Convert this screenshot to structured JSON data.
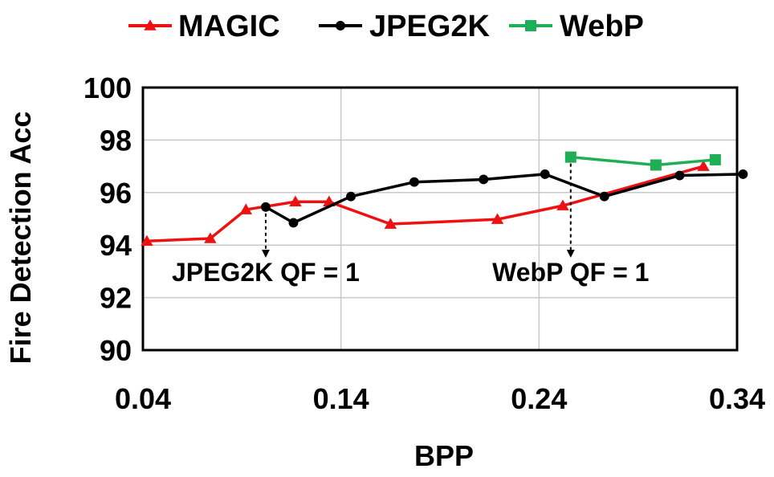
{
  "chart_data": {
    "type": "line",
    "title": "",
    "xlabel": "BPP",
    "ylabel": "Fire Detection Acc",
    "xlim": [
      0.04,
      0.34
    ],
    "ylim": [
      90,
      100
    ],
    "xticks": [
      0.04,
      0.14,
      0.24,
      0.34
    ],
    "xtick_labels": [
      "0.04",
      "0.14",
      "0.24",
      "0.34"
    ],
    "yticks": [
      90,
      92,
      94,
      96,
      98,
      100
    ],
    "ytick_labels": [
      "90",
      "92",
      "94",
      "96",
      "98",
      "100"
    ],
    "grid": true,
    "legend_position": "top",
    "series": [
      {
        "name": "MAGIC",
        "color": "#ee1111",
        "marker": "triangle",
        "x": [
          0.042,
          0.074,
          0.092,
          0.117,
          0.134,
          0.165,
          0.219,
          0.252,
          0.323
        ],
        "y": [
          94.15,
          94.25,
          95.35,
          95.65,
          95.65,
          94.8,
          94.98,
          95.5,
          97.0
        ]
      },
      {
        "name": "JPEG2K",
        "color": "#000000",
        "marker": "circle",
        "x": [
          0.102,
          0.116,
          0.145,
          0.177,
          0.212,
          0.243,
          0.273,
          0.311,
          0.343
        ],
        "y": [
          95.45,
          94.85,
          95.85,
          96.4,
          96.5,
          96.7,
          95.85,
          96.65,
          96.7
        ]
      },
      {
        "name": "WebP",
        "color": "#1fae55",
        "marker": "square",
        "x": [
          0.256,
          0.299,
          0.329
        ],
        "y": [
          97.35,
          97.05,
          97.25
        ]
      }
    ],
    "annotations": [
      {
        "text": "JPEG2K QF = 1",
        "x": 0.102,
        "y_from": 95.45,
        "y_to": 93.55,
        "color": "#000000"
      },
      {
        "text": "WebP QF = 1",
        "x": 0.256,
        "y_from": 97.35,
        "y_to": 93.55,
        "color": "#000000"
      }
    ]
  }
}
